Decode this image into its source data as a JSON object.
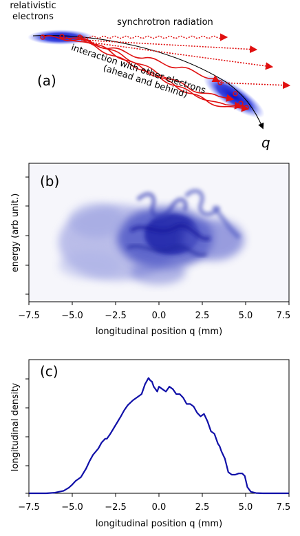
{
  "panel_a": {
    "panel_label": "(a)",
    "electrons_label_line1": "relativistic",
    "electrons_label_line2": "electrons",
    "radiation_label": "synchrotron radiation",
    "interaction_line1": "interaction with other electrons",
    "interaction_line2": "(ahead and behind)",
    "direction_label": "q",
    "colors": {
      "bunch": "#1a1ad0",
      "particle": "#e01010",
      "wave": "#e01010",
      "arc": "#000000"
    },
    "icons": [
      "electron-bunch-icon",
      "wavy-arrow-icon",
      "dotted-wavy-arrow-icon",
      "trajectory-arrow-icon"
    ]
  },
  "panel_b": {
    "panel_label": "(b)",
    "xlabel": "longitudinal position q (mm)",
    "ylabel": "energy (arb unit.)",
    "xticks": [
      "−7.5",
      "−5.0",
      "−2.5",
      "0.0",
      "2.5",
      "5.0",
      "7.5"
    ],
    "xlim": [
      -7.5,
      7.5
    ],
    "colormap_color": "#1a1ad0",
    "icon": "phase-space-density-image"
  },
  "panel_c": {
    "panel_label": "(c)",
    "xlabel": "longitudinal position q (mm)",
    "ylabel": "longitudinal density",
    "xticks": [
      "−7.5",
      "−5.0",
      "−2.5",
      "0.0",
      "2.5",
      "5.0",
      "7.5"
    ]
  },
  "chart_data": {
    "type": "line",
    "title": "",
    "xlabel": "longitudinal position q (mm)",
    "ylabel": "longitudinal density",
    "xlim": [
      -7.5,
      7.5
    ],
    "ylim": [
      0,
      1.0
    ],
    "grid": false,
    "series": [
      {
        "color": "#1010a8",
        "x": [
          -7.5,
          -6.5,
          -6.0,
          -5.5,
          -5.2,
          -5.0,
          -4.8,
          -4.5,
          -4.2,
          -4.0,
          -3.8,
          -3.5,
          -3.3,
          -3.1,
          -3.0,
          -2.8,
          -2.5,
          -2.2,
          -2.0,
          -1.8,
          -1.5,
          -1.2,
          -1.0,
          -0.8,
          -0.6,
          -0.5,
          -0.4,
          -0.3,
          -0.1,
          0.0,
          0.2,
          0.4,
          0.6,
          0.8,
          1.0,
          1.2,
          1.4,
          1.6,
          1.8,
          2.0,
          2.2,
          2.4,
          2.6,
          2.8,
          3.0,
          3.2,
          3.4,
          3.5,
          3.6,
          3.7,
          3.8,
          4.0,
          4.2,
          4.4,
          4.6,
          4.8,
          4.95,
          5.1,
          5.3,
          5.6,
          6.0,
          7.5
        ],
        "y": [
          0.0,
          0.0,
          0.005,
          0.02,
          0.045,
          0.07,
          0.1,
          0.13,
          0.2,
          0.26,
          0.31,
          0.36,
          0.41,
          0.44,
          0.44,
          0.48,
          0.55,
          0.62,
          0.67,
          0.71,
          0.75,
          0.78,
          0.8,
          0.88,
          0.93,
          0.91,
          0.9,
          0.86,
          0.82,
          0.86,
          0.84,
          0.82,
          0.86,
          0.84,
          0.8,
          0.8,
          0.77,
          0.72,
          0.72,
          0.7,
          0.65,
          0.62,
          0.64,
          0.58,
          0.5,
          0.48,
          0.4,
          0.38,
          0.34,
          0.31,
          0.28,
          0.17,
          0.15,
          0.15,
          0.16,
          0.16,
          0.14,
          0.05,
          0.012,
          0.002,
          0.0,
          0.0
        ]
      }
    ]
  }
}
